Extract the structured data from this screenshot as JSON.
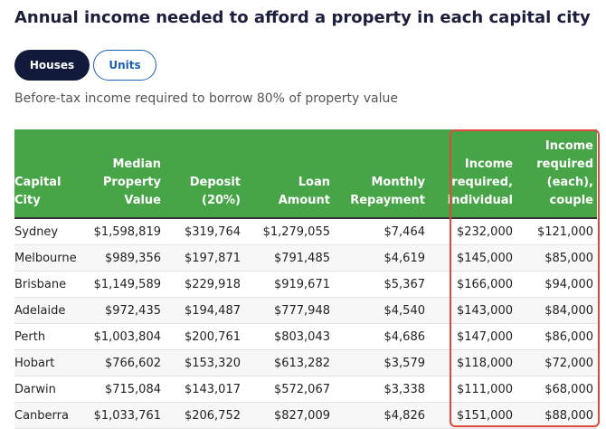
{
  "header": {
    "title": "Annual income needed to afford a property in each capital city",
    "tabs": [
      "Houses",
      "Units"
    ],
    "subtitle": "Before-tax income required to borrow 80% of property value"
  },
  "table": {
    "columns": [
      "Capital City",
      "Median Property Value",
      "Deposit (20%)",
      "Loan Amount",
      "Monthly Repayment",
      "Income required, individual",
      "Income required (each), couple"
    ],
    "rows": [
      [
        "Sydney",
        "$1,598,819",
        "$319,764",
        "$1,279,055",
        "$7,464",
        "$232,000",
        "$121,000"
      ],
      [
        "Melbourne",
        "$989,356",
        "$197,871",
        "$791,485",
        "$4,619",
        "$145,000",
        "$85,000"
      ],
      [
        "Brisbane",
        "$1,149,589",
        "$229,918",
        "$919,671",
        "$5,367",
        "$166,000",
        "$94,000"
      ],
      [
        "Adelaide",
        "$972,435",
        "$194,487",
        "$777,948",
        "$4,540",
        "$143,000",
        "$84,000"
      ],
      [
        "Perth",
        "$1,003,804",
        "$200,761",
        "$803,043",
        "$4,686",
        "$147,000",
        "$86,000"
      ],
      [
        "Hobart",
        "$766,602",
        "$153,320",
        "$613,282",
        "$3,579",
        "$118,000",
        "$72,000"
      ],
      [
        "Darwin",
        "$715,084",
        "$143,017",
        "$572,067",
        "$3,338",
        "$111,000",
        "$68,000"
      ],
      [
        "Canberra",
        "$1,033,761",
        "$206,752",
        "$827,009",
        "$4,826",
        "$151,000",
        "$88,000"
      ]
    ]
  }
}
